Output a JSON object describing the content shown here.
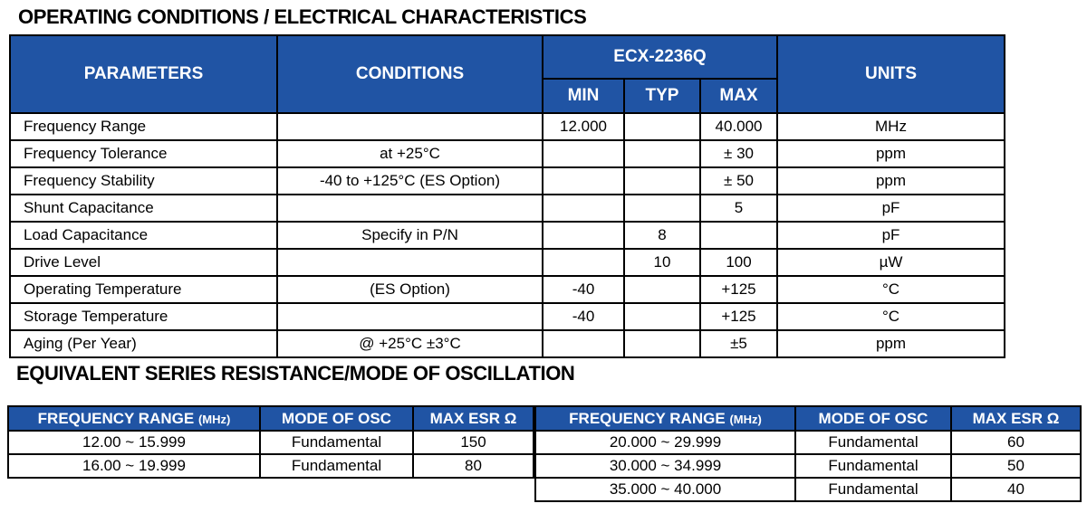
{
  "page": {
    "section1_title": "OPERATING CONDITIONS / ELECTRICAL CHARACTERISTICS",
    "section2_title": "EQUIVALENT SERIES RESISTANCE/MODE OF OSCILLATION"
  },
  "colors": {
    "header_blue": "#2054A4",
    "border_black": "#000000",
    "header_text": "#FFFFFF",
    "body_text": "#000000"
  },
  "electrical_table": {
    "headers": {
      "parameters": "PARAMETERS",
      "conditions": "CONDITIONS",
      "part_number": "ECX-2236Q",
      "min": "MIN",
      "typ": "TYP",
      "max": "MAX",
      "units": "UNITS"
    },
    "rows": [
      {
        "parameter": "Frequency Range",
        "condition": "",
        "min": "12.000",
        "typ": "",
        "max": "40.000",
        "units": "MHz"
      },
      {
        "parameter": "Frequency Tolerance",
        "condition": "at +25°C",
        "min": "",
        "typ": "",
        "max": "± 30",
        "units": "ppm"
      },
      {
        "parameter": "Frequency Stability",
        "condition": "-40 to +125°C (ES Option)",
        "min": "",
        "typ": "",
        "max": "± 50",
        "units": "ppm"
      },
      {
        "parameter": "Shunt Capacitance",
        "condition": "",
        "min": "",
        "typ": "",
        "max": "5",
        "units": "pF"
      },
      {
        "parameter": "Load Capacitance",
        "condition": "Specify in P/N",
        "min": "",
        "typ": "8",
        "max": "",
        "units": "pF"
      },
      {
        "parameter": "Drive Level",
        "condition": "",
        "min": "",
        "typ": "10",
        "max": "100",
        "units": "µW"
      },
      {
        "parameter": "Operating Temperature",
        "condition": "(ES Option)",
        "min": "-40",
        "typ": "",
        "max": "+125",
        "units": "°C"
      },
      {
        "parameter": "Storage Temperature",
        "condition": "",
        "min": "-40",
        "typ": "",
        "max": "+125",
        "units": "°C"
      },
      {
        "parameter": "Aging (Per Year)",
        "condition": "@ +25°C ±3°C",
        "min": "",
        "typ": "",
        "max": "±5",
        "units": "ppm"
      }
    ]
  },
  "esr_table": {
    "headers": {
      "freq_range": "FREQUENCY RANGE",
      "freq_unit": "(MHz)",
      "mode": "MODE OF OSC",
      "esr": "MAX ESR Ω"
    },
    "left_rows": [
      {
        "range": "12.00 ~ 15.999",
        "mode": "Fundamental",
        "esr": "150"
      },
      {
        "range": "16.00 ~ 19.999",
        "mode": "Fundamental",
        "esr": "80"
      }
    ],
    "right_rows": [
      {
        "range": "20.000 ~ 29.999",
        "mode": "Fundamental",
        "esr": "60"
      },
      {
        "range": "30.000 ~ 34.999",
        "mode": "Fundamental",
        "esr": "50"
      },
      {
        "range": "35.000 ~ 40.000",
        "mode": "Fundamental",
        "esr": "40"
      }
    ]
  }
}
